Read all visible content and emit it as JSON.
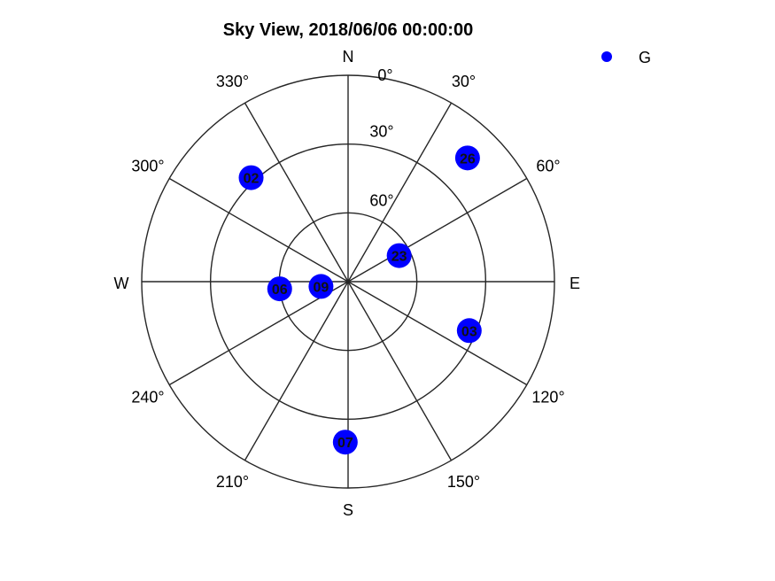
{
  "chart_data": {
    "type": "scatter",
    "subtype": "polar-skyplot",
    "title": "Sky View, 2018/06/06  00:00:00",
    "cardinals": {
      "north": "N",
      "east": "E",
      "south": "S",
      "west": "W"
    },
    "azimuth_ticks": [
      {
        "deg": 0,
        "label": "0°"
      },
      {
        "deg": 30,
        "label": "30°"
      },
      {
        "deg": 60,
        "label": "60°"
      },
      {
        "deg": 120,
        "label": "120°"
      },
      {
        "deg": 150,
        "label": "150°"
      },
      {
        "deg": 210,
        "label": "210°"
      },
      {
        "deg": 240,
        "label": "240°"
      },
      {
        "deg": 300,
        "label": "300°"
      },
      {
        "deg": 330,
        "label": "330°"
      }
    ],
    "elevation_rings": [
      {
        "deg": 0,
        "label": ""
      },
      {
        "deg": 30,
        "label": "30°"
      },
      {
        "deg": 60,
        "label": "60°"
      }
    ],
    "elevation_range": [
      0,
      90
    ],
    "legend": {
      "placement": "top-right"
    },
    "series": [
      {
        "name": "G",
        "color": "#0000ff",
        "points": [
          {
            "id": "02",
            "azimuth": 317,
            "elevation": 28
          },
          {
            "id": "06",
            "azimuth": 264,
            "elevation": 60
          },
          {
            "id": "09",
            "azimuth": 260,
            "elevation": 78
          },
          {
            "id": "23",
            "azimuth": 63,
            "elevation": 65
          },
          {
            "id": "26",
            "azimuth": 44,
            "elevation": 15
          },
          {
            "id": "03",
            "azimuth": 112,
            "elevation": 33
          },
          {
            "id": "07",
            "azimuth": 181,
            "elevation": 20
          }
        ]
      }
    ]
  }
}
